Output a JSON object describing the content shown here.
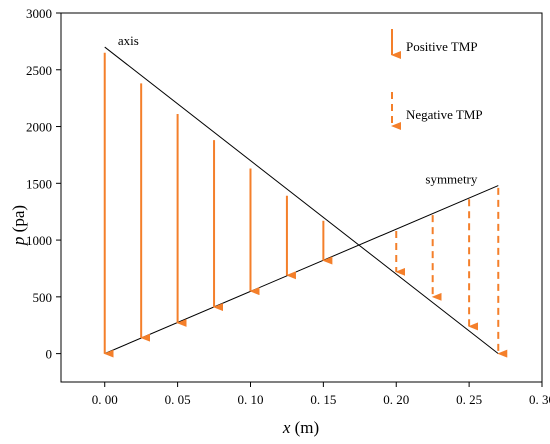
{
  "chart_data": {
    "type": "line",
    "title": "",
    "xlabel_var": "x",
    "xlabel_unit": " (m)",
    "ylabel_var": "p",
    "ylabel_unit": " (pa)",
    "xlim": [
      -0.03,
      0.3
    ],
    "ylim": [
      -250,
      3000
    ],
    "x_ticks": [
      0.0,
      0.05,
      0.1,
      0.15,
      0.2,
      0.25,
      0.3
    ],
    "x_tick_labels": [
      "0. 00",
      "0. 05",
      "0. 10",
      "0. 15",
      "0. 20",
      "0. 25",
      "0. 30"
    ],
    "y_ticks": [
      0,
      500,
      1000,
      1500,
      2000,
      2500,
      3000
    ],
    "y_tick_labels": [
      "0",
      "500",
      "1000",
      "1500",
      "2000",
      "2500",
      "3000"
    ],
    "series": [
      {
        "name": "axis",
        "x": [
          0.0,
          0.27
        ],
        "y": [
          2700,
          0
        ]
      },
      {
        "name": "symmetry",
        "x": [
          0.0,
          0.27
        ],
        "y": [
          0,
          1480
        ]
      }
    ],
    "arrows": [
      {
        "x": 0.0,
        "y_start": 2650,
        "y_end": 0,
        "kind": "Positive TMP"
      },
      {
        "x": 0.025,
        "y_start": 2380,
        "y_end": 140,
        "kind": "Positive TMP"
      },
      {
        "x": 0.05,
        "y_start": 2110,
        "y_end": 270,
        "kind": "Positive TMP"
      },
      {
        "x": 0.075,
        "y_start": 1880,
        "y_end": 410,
        "kind": "Positive TMP"
      },
      {
        "x": 0.1,
        "y_start": 1630,
        "y_end": 550,
        "kind": "Positive TMP"
      },
      {
        "x": 0.125,
        "y_start": 1390,
        "y_end": 690,
        "kind": "Positive TMP"
      },
      {
        "x": 0.15,
        "y_start": 1170,
        "y_end": 820,
        "kind": "Positive TMP"
      },
      {
        "x": 0.2,
        "y_start": 1080,
        "y_end": 720,
        "kind": "Negative TMP"
      },
      {
        "x": 0.225,
        "y_start": 1220,
        "y_end": 500,
        "kind": "Negative TMP"
      },
      {
        "x": 0.25,
        "y_start": 1360,
        "y_end": 240,
        "kind": "Negative TMP"
      },
      {
        "x": 0.27,
        "y_start": 1460,
        "y_end": 0,
        "kind": "Negative TMP"
      }
    ],
    "annotations": [
      {
        "text": "axis",
        "x": 0.009,
        "y": 2700
      },
      {
        "text": "symmetry",
        "x": 0.22,
        "y": 1480
      }
    ],
    "legend": [
      {
        "label": "Positive TMP",
        "style": "solid"
      },
      {
        "label": "Negative TMP",
        "style": "dashed"
      }
    ],
    "legend_position": "top-right",
    "grid": false
  },
  "colors": {
    "arrow": "#f47f2a",
    "line": "#000000",
    "axis": "#000000"
  }
}
